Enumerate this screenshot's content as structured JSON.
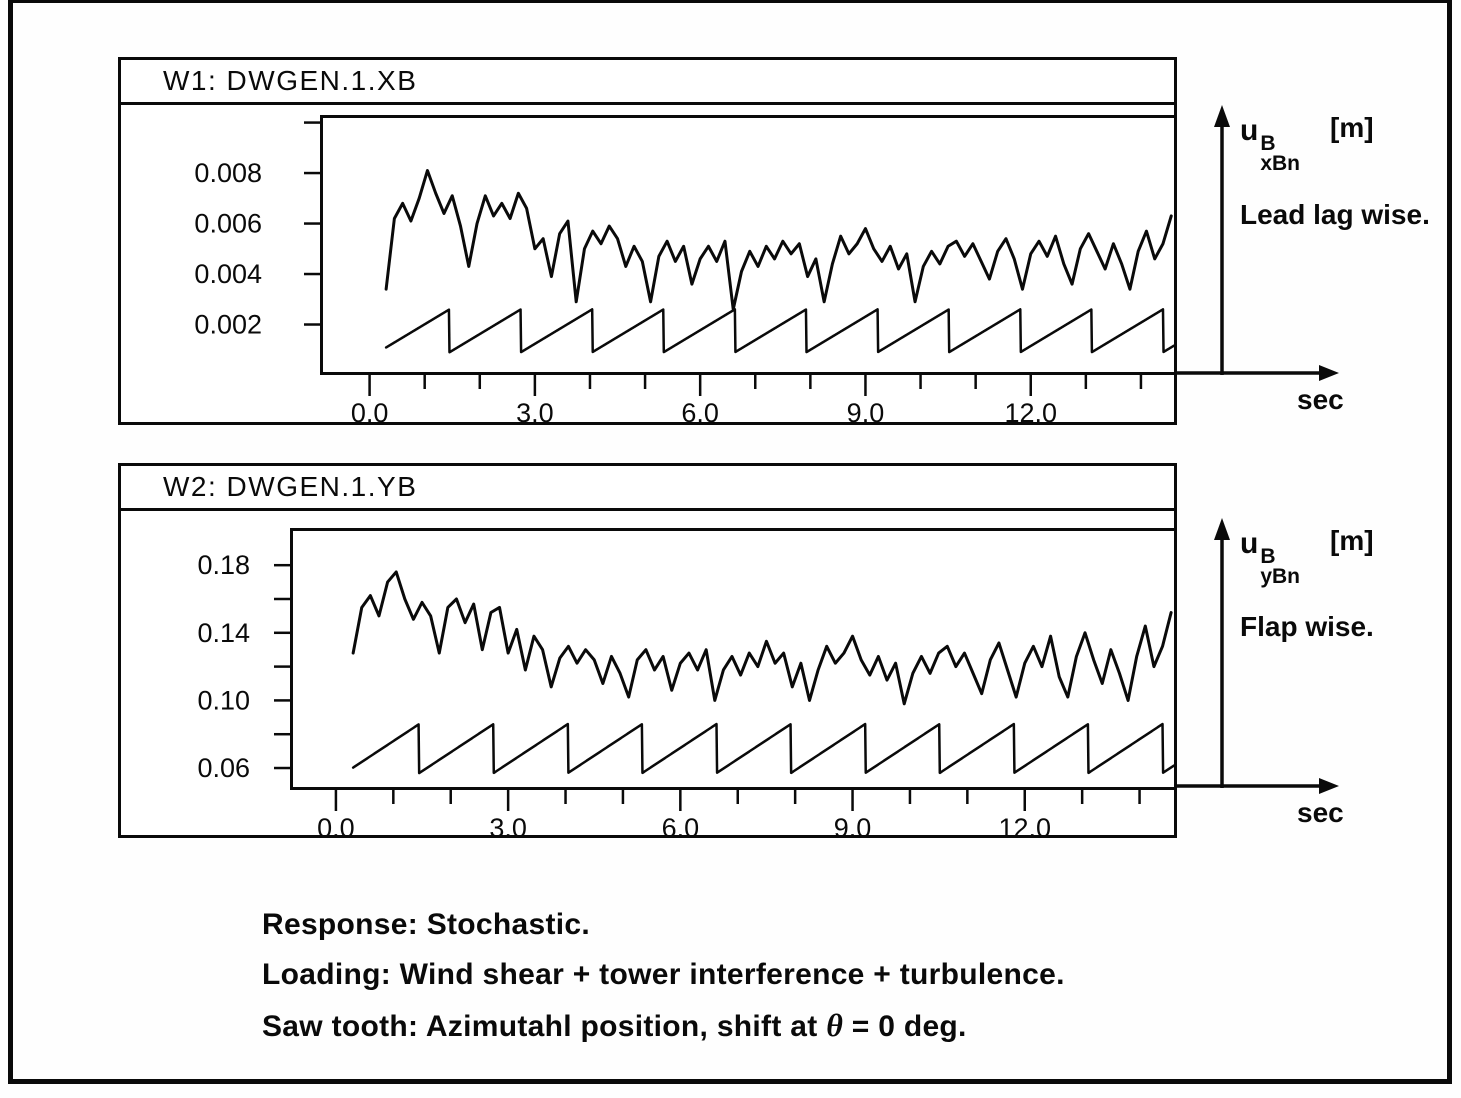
{
  "chart_data": [
    {
      "type": "line",
      "window_title": "W1: DWGEN.1.XB",
      "x_unit": "sec",
      "axis_symbol": {
        "base": "u",
        "sup": "B",
        "sub": "xBn",
        "unit": "[m]"
      },
      "direction_note": "Lead lag wise.",
      "x_range": [
        -0.9,
        14.6
      ],
      "y_range": [
        0,
        0.0103
      ],
      "x_major_ticks": [
        0,
        3,
        6,
        9,
        12
      ],
      "x_tick_labels": [
        "0.0",
        "3.0",
        "6.0",
        "9.0",
        "12.0"
      ],
      "x_minor_ticks": [
        1,
        2,
        4,
        5,
        7,
        8,
        10,
        11,
        13,
        14
      ],
      "y_ticks": [
        {
          "value": 0.002,
          "label": "0.002"
        },
        {
          "value": 0.004,
          "label": "0.004"
        },
        {
          "value": 0.006,
          "label": "0.006"
        },
        {
          "value": 0.008,
          "label": "0.008"
        },
        {
          "value": 0.01,
          "label": ""
        }
      ],
      "y_label_x": -58,
      "series": [
        {
          "name": "response-lead-lag",
          "t_start": 0.3,
          "t_step": 0.15,
          "y_scale": 0.001,
          "y": [
            3.4,
            6.2,
            6.8,
            6.1,
            7.0,
            8.1,
            7.2,
            6.4,
            7.1,
            5.9,
            4.3,
            6.0,
            7.1,
            6.3,
            6.8,
            6.2,
            7.2,
            6.6,
            5.0,
            5.4,
            3.9,
            5.6,
            6.1,
            2.9,
            5.0,
            5.7,
            5.2,
            5.9,
            5.4,
            4.3,
            5.1,
            4.5,
            2.9,
            4.7,
            5.3,
            4.5,
            5.1,
            3.6,
            4.6,
            5.1,
            4.5,
            5.3,
            2.6,
            4.1,
            4.9,
            4.3,
            5.1,
            4.6,
            5.3,
            4.8,
            5.2,
            3.9,
            4.6,
            2.9,
            4.4,
            5.5,
            4.8,
            5.2,
            5.8,
            5.0,
            4.5,
            5.1,
            4.2,
            4.8,
            2.9,
            4.3,
            4.9,
            4.4,
            5.1,
            5.3,
            4.7,
            5.2,
            4.5,
            3.8,
            4.9,
            5.4,
            4.6,
            3.4,
            4.8,
            5.3,
            4.7,
            5.5,
            4.4,
            3.6,
            5.0,
            5.6,
            4.9,
            4.2,
            5.2,
            4.4,
            3.4,
            4.9,
            5.7,
            4.6,
            5.2,
            6.3
          ]
        },
        {
          "name": "azimuth-sawtooth",
          "y_scale": 0.001,
          "sawtooth": {
            "min": 0.9,
            "max": 2.6,
            "period": 1.295,
            "drop_at": 1.45,
            "t_start": 0.3,
            "t_end": 14.6
          }
        }
      ]
    },
    {
      "type": "line",
      "window_title": "W2: DWGEN.1.YB",
      "x_unit": "sec",
      "axis_symbol": {
        "base": "u",
        "sup": "B",
        "sub": "yBn",
        "unit": "[m]"
      },
      "direction_note": "Flap wise.",
      "x_range": [
        -0.8,
        14.6
      ],
      "y_range": [
        0.047,
        0.202
      ],
      "x_major_ticks": [
        0,
        3,
        6,
        9,
        12
      ],
      "x_tick_labels": [
        "0.0",
        "3.0",
        "6.0",
        "9.0",
        "12.0"
      ],
      "x_minor_ticks": [
        1,
        2,
        4,
        5,
        7,
        8,
        10,
        11,
        13,
        14
      ],
      "y_ticks": [
        {
          "value": 0.06,
          "label": "0.06"
        },
        {
          "value": 0.08,
          "label": ""
        },
        {
          "value": 0.1,
          "label": "0.10"
        },
        {
          "value": 0.12,
          "label": ""
        },
        {
          "value": 0.14,
          "label": "0.14"
        },
        {
          "value": 0.16,
          "label": ""
        },
        {
          "value": 0.18,
          "label": "0.18"
        }
      ],
      "y_label_x": -40,
      "series": [
        {
          "name": "response-flap",
          "t_start": 0.3,
          "t_step": 0.15,
          "y_scale": 0.001,
          "y": [
            128,
            155,
            162,
            150,
            170,
            176,
            160,
            148,
            158,
            150,
            128,
            155,
            160,
            146,
            157,
            130,
            152,
            155,
            128,
            142,
            118,
            138,
            130,
            108,
            125,
            132,
            122,
            130,
            124,
            110,
            126,
            116,
            102,
            124,
            130,
            118,
            126,
            106,
            122,
            128,
            118,
            130,
            100,
            118,
            126,
            115,
            128,
            120,
            135,
            122,
            128,
            108,
            122,
            100,
            118,
            132,
            122,
            128,
            138,
            124,
            115,
            126,
            112,
            122,
            98,
            116,
            126,
            116,
            128,
            132,
            120,
            128,
            116,
            104,
            124,
            134,
            118,
            102,
            122,
            132,
            120,
            138,
            114,
            102,
            126,
            140,
            124,
            110,
            130,
            116,
            100,
            126,
            144,
            120,
            132,
            152
          ]
        },
        {
          "name": "azimuth-sawtooth",
          "y_scale": 0.001,
          "sawtooth": {
            "min": 57,
            "max": 86,
            "period": 1.295,
            "drop_at": 1.45,
            "t_start": 0.3,
            "t_end": 14.6
          }
        }
      ]
    }
  ],
  "caption": {
    "line1": "Response: Stochastic.",
    "line2": "Loading: Wind shear + tower interference + turbulence.",
    "line3_pre": "Saw tooth: Azimutahl position, shift at ",
    "line3_theta": "θ",
    "line3_post": " = 0 deg."
  }
}
